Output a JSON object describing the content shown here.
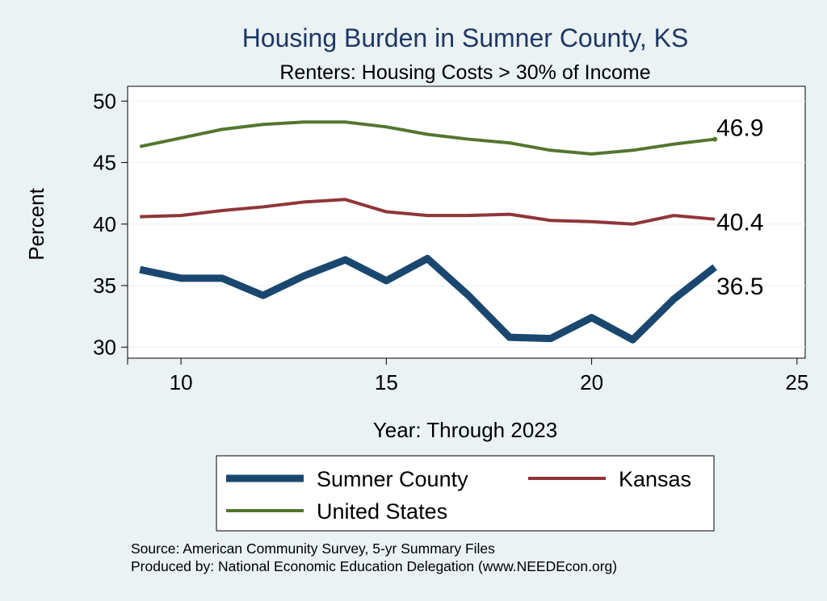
{
  "chart_data": {
    "type": "line",
    "title": "Housing Burden in Sumner County, KS",
    "subtitle": "Renters: Housing Costs > 30% of Income",
    "xlabel": "Year: Through 2023",
    "ylabel": "Percent",
    "xlim": [
      8.7,
      25.2
    ],
    "ylim": [
      29.1,
      51.2
    ],
    "xticks": [
      10,
      15,
      20,
      25
    ],
    "yticks": [
      30,
      35,
      40,
      45,
      50
    ],
    "grid": true,
    "legend_position": "bottom",
    "series": [
      {
        "name": "Sumner County",
        "color": "#1a476f",
        "width": 9,
        "x": [
          9,
          10,
          11,
          12,
          13,
          14,
          15,
          16,
          17,
          18,
          19,
          20,
          21,
          22,
          23
        ],
        "values": [
          36.3,
          35.6,
          35.6,
          34.2,
          35.8,
          37.1,
          35.4,
          37.2,
          34.2,
          30.8,
          30.7,
          32.4,
          30.6,
          33.9,
          36.5
        ],
        "end_label": "36.5"
      },
      {
        "name": "Kansas",
        "color": "#90353b",
        "width": 4,
        "x": [
          9,
          10,
          11,
          12,
          13,
          14,
          15,
          16,
          17,
          18,
          19,
          20,
          21,
          22,
          23
        ],
        "values": [
          40.6,
          40.7,
          41.1,
          41.4,
          41.8,
          42.0,
          41.0,
          40.7,
          40.7,
          40.8,
          40.3,
          40.2,
          40.0,
          40.7,
          40.4
        ],
        "end_label": "40.4"
      },
      {
        "name": "United States",
        "color": "#55752f",
        "width": 4,
        "x": [
          9,
          10,
          11,
          12,
          13,
          14,
          15,
          16,
          17,
          18,
          19,
          20,
          21,
          22,
          23
        ],
        "values": [
          46.3,
          47.0,
          47.7,
          48.1,
          48.3,
          48.3,
          47.9,
          47.3,
          46.9,
          46.6,
          46.0,
          45.7,
          46.0,
          46.5,
          46.9
        ],
        "end_label": "46.9"
      }
    ],
    "legend": [
      {
        "name": "Sumner County",
        "color": "#1a476f",
        "width": 9
      },
      {
        "name": "Kansas",
        "color": "#90353b",
        "width": 4
      },
      {
        "name": "United States",
        "color": "#55752f",
        "width": 4
      }
    ],
    "notes": [
      "Source: American Community Survey, 5-yr Summary Files",
      "Produced by: National Economic Education Delegation (www.NEEDEcon.org)"
    ],
    "colors": {
      "background": "#eaf2f3",
      "plot_background": "#ffffff",
      "title": "#1e3765",
      "text": "#000000",
      "grid": "#eaf2f3"
    }
  }
}
